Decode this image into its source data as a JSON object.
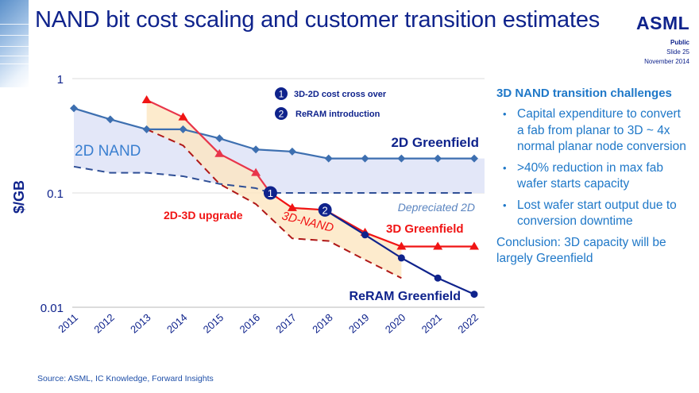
{
  "header": {
    "title": "NAND bit cost scaling and customer transition estimates",
    "logo": "ASML",
    "classification": "Public",
    "slide": "Slide 25",
    "date": "November 2014"
  },
  "colors": {
    "title": "#0f238c",
    "greenfield_2d": "#3d6fb0",
    "nand_3d": "#f01414",
    "reram": "#0f238c",
    "band_2d": "#e2e6f8",
    "band_3d": "#fde6c0",
    "accent_text": "#1f78c8"
  },
  "chart_data": {
    "type": "line",
    "title": "",
    "xlabel": "",
    "ylabel": "$/GB",
    "yscale": "log",
    "ylim": [
      0.01,
      1
    ],
    "yticks": [
      {
        "value": 1,
        "label": "1"
      },
      {
        "value": 0.1,
        "label": "0.1"
      },
      {
        "value": 0.01,
        "label": "0.01"
      }
    ],
    "xlim": [
      2011,
      2022
    ],
    "xticks": [
      "2011",
      "2012",
      "2013",
      "2014",
      "2015",
      "2016",
      "2017",
      "2018",
      "2019",
      "2020",
      "2021",
      "2022"
    ],
    "grid": "horizontal",
    "series": [
      {
        "name": "2D Greenfield",
        "style": "solid-diamond",
        "points": [
          [
            2011,
            0.55
          ],
          [
            2012,
            0.44
          ],
          [
            2013,
            0.36
          ],
          [
            2014,
            0.36
          ],
          [
            2015,
            0.3
          ],
          [
            2016,
            0.24
          ],
          [
            2017,
            0.23
          ],
          [
            2018,
            0.2
          ],
          [
            2019,
            0.2
          ],
          [
            2020,
            0.2
          ],
          [
            2021,
            0.2
          ],
          [
            2022,
            0.2
          ]
        ]
      },
      {
        "name": "Depreciated 2D",
        "style": "dashed",
        "points": [
          [
            2011,
            0.17
          ],
          [
            2012,
            0.15
          ],
          [
            2013,
            0.15
          ],
          [
            2014,
            0.14
          ],
          [
            2015,
            0.12
          ],
          [
            2016,
            0.11
          ],
          [
            2016.4,
            0.1
          ],
          [
            2017,
            0.1
          ],
          [
            2018,
            0.1
          ],
          [
            2019,
            0.1
          ],
          [
            2020,
            0.1
          ],
          [
            2021,
            0.1
          ],
          [
            2022,
            0.1
          ]
        ]
      },
      {
        "name": "2D-3D upgrade",
        "style": "solid-triangle",
        "points": [
          [
            2013,
            0.65
          ],
          [
            2014,
            0.46
          ],
          [
            2015,
            0.22
          ],
          [
            2016,
            0.15
          ],
          [
            2016.4,
            0.1
          ]
        ]
      },
      {
        "name": "2D-3D upgrade lower bound",
        "style": "dashed",
        "points": [
          [
            2013,
            0.36
          ],
          [
            2014,
            0.26
          ],
          [
            2015,
            0.12
          ],
          [
            2016,
            0.08
          ],
          [
            2017,
            0.04
          ],
          [
            2018,
            0.038
          ],
          [
            2019,
            0.026
          ],
          [
            2020,
            0.018
          ]
        ]
      },
      {
        "name": "3D Greenfield",
        "style": "solid-triangle",
        "points": [
          [
            2016.4,
            0.1
          ],
          [
            2017,
            0.074
          ],
          [
            2017.9,
            0.071
          ],
          [
            2019,
            0.045
          ],
          [
            2020,
            0.034
          ],
          [
            2021,
            0.034
          ],
          [
            2022,
            0.034
          ]
        ]
      },
      {
        "name": "ReRAM Greenfield",
        "style": "solid-circle",
        "points": [
          [
            2017.9,
            0.071
          ],
          [
            2019,
            0.043
          ],
          [
            2020,
            0.027
          ],
          [
            2021,
            0.018
          ],
          [
            2022,
            0.013
          ]
        ]
      }
    ],
    "bands": [
      {
        "name": "2D NAND",
        "upper": "2D Greenfield",
        "lower": "Depreciated 2D"
      },
      {
        "name": "3D-NAND",
        "upper": "2D-3D upgrade / 3D Greenfield",
        "lower": "2D-3D upgrade lower bound"
      }
    ],
    "markers": [
      {
        "id": "1",
        "label": "3D-2D cost cross over",
        "x": 2016.4,
        "y": 0.1
      },
      {
        "id": "2",
        "label": "ReRAM introduction",
        "x": 2017.9,
        "y": 0.071
      }
    ],
    "annotations": {
      "band_2d": "2D NAND",
      "greenfield_2d": "2D Greenfield",
      "depreciated": "Depreciated 2D",
      "upgrade": "2D-3D upgrade",
      "band_3d": "3D-NAND",
      "greenfield_3d": "3D Greenfield",
      "reram": "ReRAM Greenfield"
    }
  },
  "sidebar": {
    "heading": "3D NAND transition challenges",
    "bullets": [
      "Capital expenditure to convert a fab from planar to 3D ~ 4x normal planar node conversion",
      ">40% reduction in max fab wafer starts capacity",
      "Lost wafer start output due to conversion downtime"
    ],
    "conclusion": "Conclusion: 3D  capacity will be largely Greenfield"
  },
  "footer": {
    "source": "Source: ASML, IC Knowledge, Forward Insights"
  }
}
